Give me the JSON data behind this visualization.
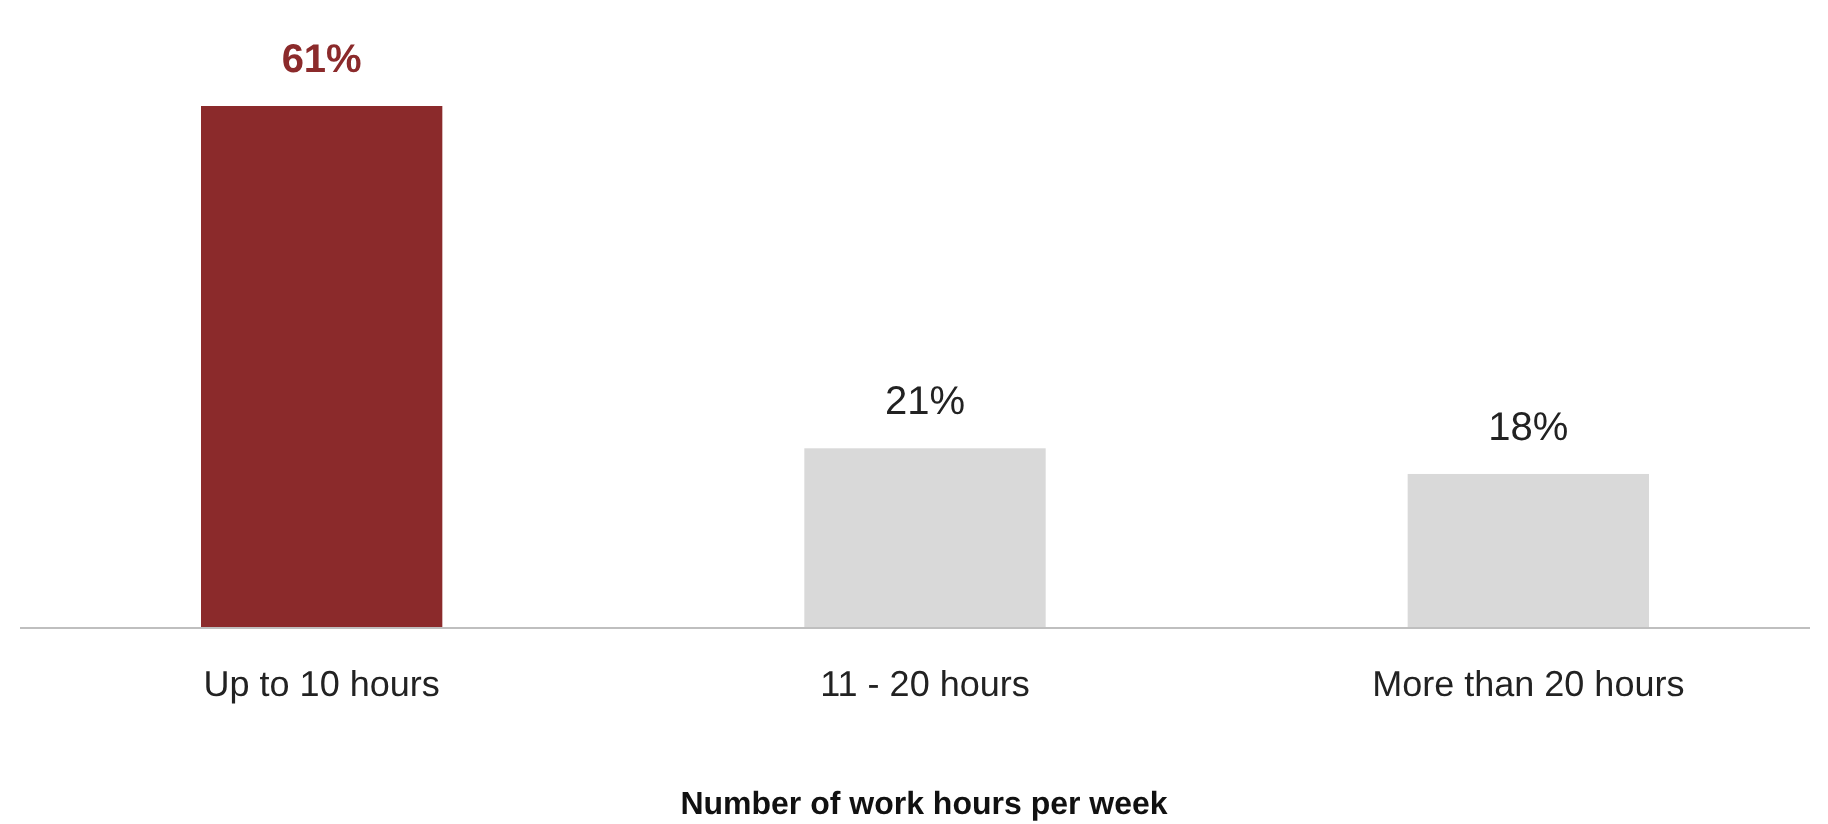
{
  "chart_data": {
    "type": "bar",
    "xlabel": "Number of work hours per week",
    "categories": [
      "Up to 10 hours",
      "11 - 20 hours",
      "More than 20 hours"
    ],
    "values": [
      61,
      21,
      18
    ],
    "colors": [
      "#8b2a2b",
      "#d9d9d9",
      "#d9d9d9"
    ],
    "value_labels": [
      "61%",
      "21%",
      "18%"
    ]
  }
}
